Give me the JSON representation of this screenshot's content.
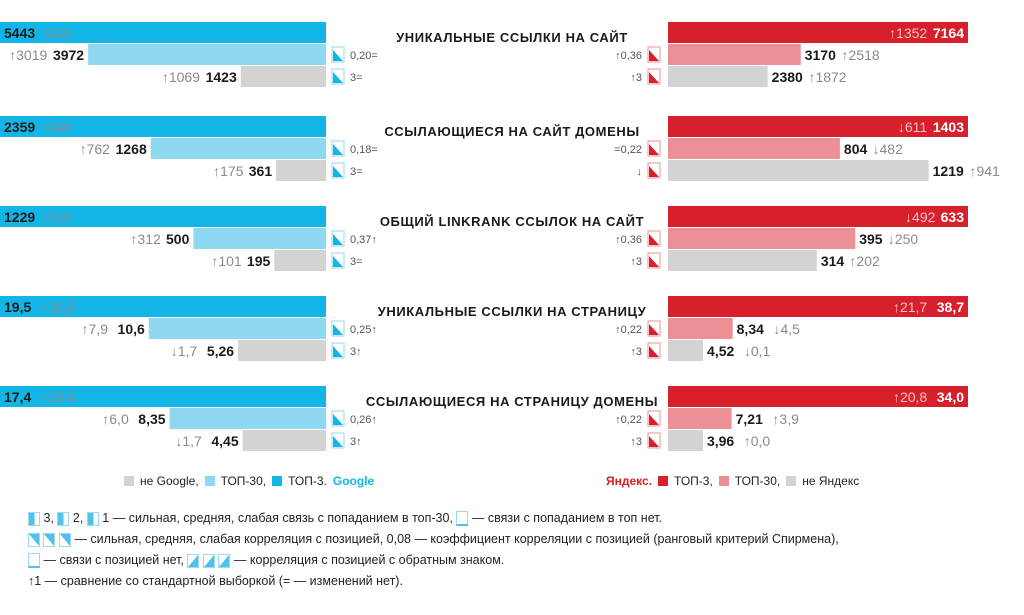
{
  "chart_data": {
    "type": "bar",
    "groups": [
      {
        "title": "УНИКАЛЬНЫЕ ССЫЛКИ НА САЙТ",
        "google": [
          {
            "series": "ТОП-3",
            "value": 5443,
            "value_label": "5443",
            "delta": "↑623"
          },
          {
            "series": "ТОП-30",
            "value": 3972,
            "value_label": "3972",
            "delta": "↑3019"
          },
          {
            "series": "не Google",
            "value": 1423,
            "value_label": "1423",
            "delta": "↑1069"
          }
        ],
        "google_corr": [
          "",
          "0,20=",
          "3="
        ],
        "yandex": [
          {
            "series": "ТОП-3",
            "value": 7164,
            "value_label": "7164",
            "delta": "↑1352"
          },
          {
            "series": "ТОП-30",
            "value": 3170,
            "value_label": "3170",
            "delta": "↑2518"
          },
          {
            "series": "не Яндекс",
            "value": 2380,
            "value_label": "2380",
            "delta": "↑1872"
          }
        ],
        "yandex_corr": [
          "",
          "↑0,36",
          "↑3"
        ]
      },
      {
        "title": "ССЫЛАЮЩИЕСЯ НА САЙТ ДОМЕНЫ",
        "google": [
          {
            "series": "ТОП-3",
            "value": 2359,
            "value_label": "2359",
            "delta": "↑340"
          },
          {
            "series": "ТОП-30",
            "value": 1268,
            "value_label": "1268",
            "delta": "↑762"
          },
          {
            "series": "не Google",
            "value": 361,
            "value_label": "361",
            "delta": "↑175"
          }
        ],
        "google_corr": [
          "",
          "0,18=",
          "3="
        ],
        "yandex": [
          {
            "series": "ТОП-3",
            "value": 1403,
            "value_label": "1403",
            "delta": "↓611"
          },
          {
            "series": "ТОП-30",
            "value": 804,
            "value_label": "804",
            "delta": "↓482"
          },
          {
            "series": "не Яндекс",
            "value": 1219,
            "value_label": "1219",
            "delta": "↑941"
          }
        ],
        "yandex_corr": [
          "",
          "=0,22",
          "↓"
        ]
      },
      {
        "title": "ОБЩИЙ LINKRANK ССЫЛОК НА САЙТ",
        "google": [
          {
            "series": "ТОП-3",
            "value": 1229,
            "value_label": "1229",
            "delta": "↑319"
          },
          {
            "series": "ТОП-30",
            "value": 500,
            "value_label": "500",
            "delta": "↑312"
          },
          {
            "series": "не Google",
            "value": 195,
            "value_label": "195",
            "delta": "↑101"
          }
        ],
        "google_corr": [
          "",
          "0,37↑",
          "3="
        ],
        "yandex": [
          {
            "series": "ТОП-3",
            "value": 633,
            "value_label": "633",
            "delta": "↓492"
          },
          {
            "series": "ТОП-30",
            "value": 395,
            "value_label": "395",
            "delta": "↓250"
          },
          {
            "series": "не Яндекс",
            "value": 314,
            "value_label": "314",
            "delta": "↑202"
          }
        ],
        "yandex_corr": [
          "",
          "↑0,36",
          "↑3"
        ]
      },
      {
        "title": "УНИКАЛЬНЫЕ ССЫЛКИ НА СТРАНИЦУ",
        "google": [
          {
            "series": "ТОП-3",
            "value": 19.5,
            "value_label": "19,5",
            "delta": "↑11,5"
          },
          {
            "series": "ТОП-30",
            "value": 10.6,
            "value_label": "10,6",
            "delta": "↑7,9"
          },
          {
            "series": "не Google",
            "value": 5.26,
            "value_label": "5,26",
            "delta": "↓1,7"
          }
        ],
        "google_corr": [
          "",
          "0,25↑",
          "3↑"
        ],
        "yandex": [
          {
            "series": "ТОП-3",
            "value": 38.7,
            "value_label": "38,7",
            "delta": "↑21,7"
          },
          {
            "series": "ТОП-30",
            "value": 8.34,
            "value_label": "8,34",
            "delta": "↓4,5"
          },
          {
            "series": "не Яндекс",
            "value": 4.52,
            "value_label": "4,52",
            "delta": "↓0,1"
          }
        ],
        "yandex_corr": [
          "",
          "↑0,22",
          "↑3"
        ]
      },
      {
        "title": "ССЫЛАЮЩИЕСЯ НА СТРАНИЦУ ДОМЕНЫ",
        "google": [
          {
            "series": "ТОП-3",
            "value": 17.4,
            "value_label": "17,4",
            "delta": "↑10,8"
          },
          {
            "series": "ТОП-30",
            "value": 8.35,
            "value_label": "8,35",
            "delta": "↑6,0"
          },
          {
            "series": "не Google",
            "value": 4.45,
            "value_label": "4,45",
            "delta": "↓1,7"
          }
        ],
        "google_corr": [
          "",
          "0,26↑",
          "3↑"
        ],
        "yandex": [
          {
            "series": "ТОП-3",
            "value": 34.0,
            "value_label": "34,0",
            "delta": "↑20,8"
          },
          {
            "series": "ТОП-30",
            "value": 7.21,
            "value_label": "7,21",
            "delta": "↑3,9"
          },
          {
            "series": "не Яндекс",
            "value": 3.96,
            "value_label": "3,96",
            "delta": "↑0,0"
          }
        ],
        "yandex_corr": [
          "",
          "↑0,22",
          "↑3"
        ]
      }
    ],
    "scales": [
      {
        "google_max": 5443,
        "yandex_max": 7164
      },
      {
        "google_max": 2359,
        "yandex_max": 1403
      },
      {
        "google_max": 1229,
        "yandex_max": 633
      },
      {
        "google_max": 19.5,
        "yandex_max": 38.7
      },
      {
        "google_max": 17.4,
        "yandex_max": 34.0
      }
    ],
    "colors": {
      "google_top3": "#12b6e6",
      "google_top30": "#8fd8f2",
      "not_google": "#d3d3d3",
      "yandex_top3": "#d7202c",
      "yandex_top30": "#ec9096",
      "not_yandex": "#d3d3d3",
      "delta_text": "#8a8a8a"
    }
  },
  "legend": {
    "google": {
      "not": "не Google,",
      "top30": "ТОП-30,",
      "top3": "ТОП-3.",
      "brand": "Google"
    },
    "yandex": {
      "brand": "Яндекс.",
      "top3": "ТОП-3,",
      "top30": "ТОП-30,",
      "not": "не Яндекс"
    }
  },
  "notes": {
    "line1_a": "3,",
    "line1_b": "2,",
    "line1_c": "1 — сильная, средняя, слабая связь с попаданием в топ-30,",
    "line1_d": "— связи с попаданием в топ нет.",
    "line2": "— сильная, средняя, слабая корреляция с позицией, 0,08 — коэффициент корреляции с позицией (ранговый критерий Спирмена),",
    "line3_a": "— связи с позицией нет,",
    "line3_b": "— корреляция с позицией с обратным знаком.",
    "line4": "↑1 — сравнение со стандартной выборкой (= — изменений нет)."
  }
}
